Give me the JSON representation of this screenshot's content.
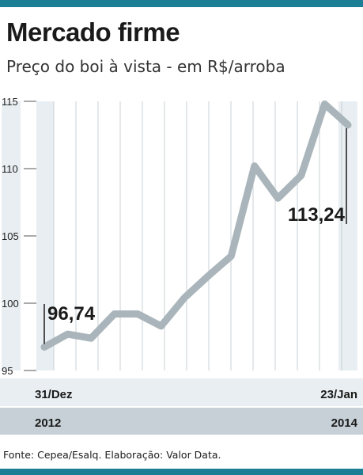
{
  "header": {
    "title": "Mercado firme",
    "subtitle": "Preço do boi à vista - em R$/arroba"
  },
  "footer": {
    "source": "Fonte: Cepea/Esalq. Elaboração: Valor Data."
  },
  "colors": {
    "accent_bar": "#1d7f96",
    "line": "#a9b5bb",
    "band": "#e8eef1",
    "band_dark": "#c6d0d6",
    "grid": "#c9d2d7"
  },
  "chart_data": {
    "type": "line",
    "ylim": [
      95,
      115
    ],
    "yticks": [
      "95",
      "100",
      "105",
      "110",
      "115"
    ],
    "y": [
      96.74,
      97.7,
      97.4,
      99.2,
      99.2,
      98.3,
      100.4,
      102.0,
      103.5,
      110.2,
      107.8,
      109.5,
      114.8,
      113.24
    ],
    "annotations": [
      {
        "label": "96,74",
        "value": 96.74
      },
      {
        "label": "113,24",
        "value": 113.24
      }
    ],
    "x_start": {
      "date": "31/Dez",
      "year": "2012"
    },
    "x_end": {
      "date": "23/Jan",
      "year": "2014"
    }
  }
}
